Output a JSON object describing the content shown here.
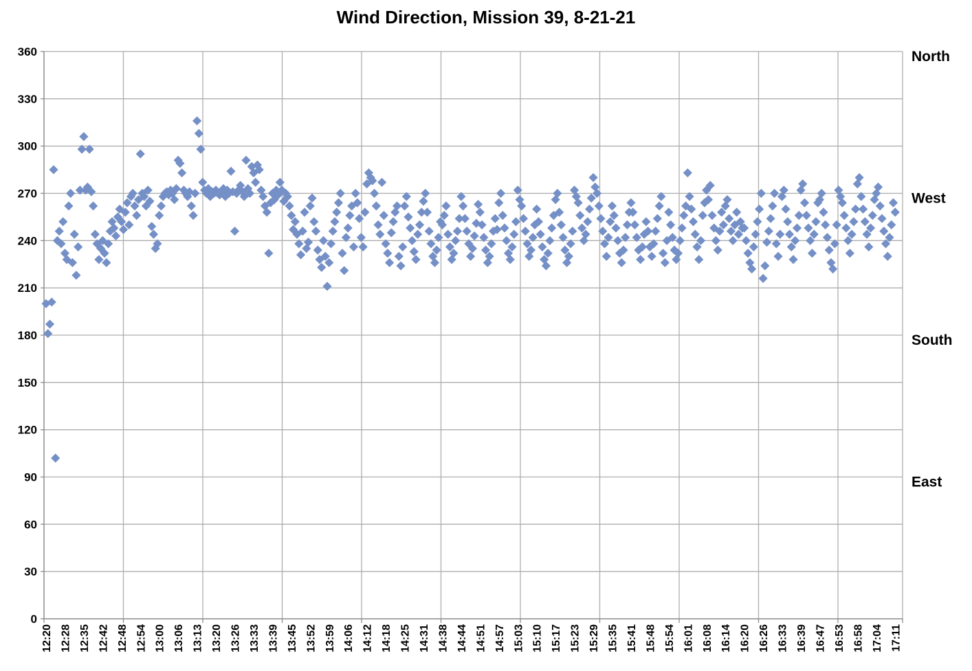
{
  "chart_data": {
    "type": "scatter",
    "title": "Wind Direction, Mission 39, 8-21-21",
    "xlabel": "",
    "ylabel": "",
    "ylim": [
      0,
      360
    ],
    "y_ticks": [
      0,
      30,
      60,
      90,
      120,
      150,
      180,
      210,
      240,
      270,
      300,
      330,
      360
    ],
    "x_tick_labels": [
      "12:20",
      "12:28",
      "12:35",
      "12:42",
      "12:48",
      "12:54",
      "13:00",
      "13:06",
      "13:13",
      "13:20",
      "13:26",
      "13:33",
      "13:39",
      "13:45",
      "13:52",
      "13:59",
      "14:06",
      "14:12",
      "14:18",
      "14:25",
      "14:31",
      "14:38",
      "14:44",
      "14:51",
      "14:57",
      "15:03",
      "15:10",
      "15:17",
      "15:23",
      "15:29",
      "15:35",
      "15:41",
      "15:48",
      "15:54",
      "16:01",
      "16:08",
      "16:14",
      "16:20",
      "16:26",
      "16:33",
      "16:39",
      "16:47",
      "16:53",
      "16:58",
      "17:04",
      "17:11"
    ],
    "direction_labels": [
      {
        "label": "North",
        "value": 360
      },
      {
        "label": "West",
        "value": 270
      },
      {
        "label": "South",
        "value": 180
      },
      {
        "label": "East",
        "value": 90
      }
    ],
    "legend": "none",
    "grid": "on",
    "marker": "diamond",
    "colors": {
      "marker_fill": "#7590C7",
      "gridline": "#ADADAD",
      "axis": "#8C8C8C",
      "text": "#000000"
    },
    "time_start": "12:20",
    "time_end": "17:11",
    "n_points": 451,
    "points": [
      200,
      181,
      187,
      201,
      285,
      102,
      240,
      246,
      238,
      252,
      232,
      228,
      262,
      270,
      226,
      244,
      218,
      236,
      272,
      298,
      306,
      272,
      274,
      298,
      271,
      262,
      244,
      238,
      228,
      235,
      240,
      232,
      226,
      238,
      246,
      252,
      248,
      243,
      255,
      260,
      252,
      247,
      258,
      264,
      250,
      268,
      270,
      262,
      256,
      266,
      295,
      270,
      268,
      262,
      272,
      265,
      249,
      244,
      235,
      238,
      256,
      262,
      268,
      270,
      271,
      269,
      272,
      270,
      266,
      273,
      291,
      289,
      283,
      272,
      270,
      268,
      271,
      262,
      256,
      270,
      316,
      308,
      298,
      277,
      272,
      270,
      273,
      268,
      271,
      270,
      272,
      270,
      269,
      271,
      273,
      268,
      272,
      270,
      284,
      271,
      246,
      270,
      272,
      275,
      271,
      268,
      291,
      273,
      270,
      287,
      283,
      277,
      288,
      285,
      272,
      268,
      262,
      258,
      232,
      264,
      270,
      266,
      272,
      269,
      277,
      272,
      265,
      270,
      268,
      262,
      256,
      247,
      252,
      244,
      238,
      231,
      246,
      258,
      235,
      239,
      262,
      267,
      252,
      246,
      234,
      228,
      223,
      240,
      230,
      211,
      226,
      238,
      246,
      252,
      258,
      264,
      270,
      232,
      221,
      242,
      248,
      256,
      262,
      236,
      270,
      264,
      254,
      242,
      236,
      258,
      276,
      283,
      280,
      278,
      270,
      262,
      250,
      244,
      277,
      256,
      238,
      232,
      226,
      245,
      252,
      258,
      262,
      230,
      224,
      236,
      262,
      268,
      255,
      248,
      240,
      233,
      228,
      244,
      250,
      258,
      265,
      270,
      258,
      246,
      238,
      230,
      226,
      234,
      242,
      252,
      250,
      256,
      262,
      244,
      236,
      228,
      232,
      240,
      246,
      254,
      268,
      262,
      254,
      246,
      238,
      230,
      235,
      243,
      251,
      263,
      258,
      250,
      242,
      234,
      226,
      230,
      238,
      246,
      254,
      247,
      264,
      270,
      256,
      248,
      240,
      232,
      228,
      236,
      244,
      252,
      272,
      266,
      262,
      254,
      246,
      238,
      230,
      234,
      242,
      250,
      260,
      252,
      244,
      236,
      228,
      224,
      232,
      240,
      248,
      256,
      266,
      270,
      258,
      250,
      242,
      234,
      226,
      230,
      238,
      246,
      272,
      268,
      264,
      256,
      248,
      240,
      244,
      252,
      260,
      267,
      280,
      274,
      270,
      262,
      254,
      246,
      238,
      230,
      242,
      252,
      262,
      256,
      248,
      240,
      232,
      226,
      234,
      242,
      250,
      258,
      264,
      258,
      250,
      242,
      234,
      228,
      236,
      244,
      252,
      246,
      236,
      230,
      238,
      246,
      254,
      262,
      268,
      232,
      226,
      240,
      258,
      250,
      242,
      234,
      228,
      232,
      240,
      248,
      256,
      262,
      283,
      268,
      260,
      252,
      244,
      236,
      228,
      240,
      256,
      264,
      272,
      266,
      275,
      256,
      248,
      240,
      234,
      246,
      258,
      250,
      262,
      266,
      254,
      246,
      240,
      250,
      258,
      244,
      252,
      248,
      248,
      240,
      232,
      226,
      222,
      236,
      244,
      252,
      260,
      270,
      216,
      224,
      239,
      246,
      254,
      262,
      270,
      238,
      230,
      244,
      268,
      272,
      260,
      252,
      244,
      236,
      228,
      240,
      248,
      256,
      272,
      276,
      264,
      256,
      248,
      240,
      232,
      244,
      252,
      264,
      266,
      270,
      258,
      250,
      242,
      234,
      226,
      222,
      238,
      250,
      272,
      268,
      264,
      256,
      248,
      240,
      232,
      244,
      252,
      260,
      276,
      280,
      268,
      260,
      252,
      244,
      236,
      248,
      256,
      266,
      270,
      274,
      262,
      254,
      246,
      238,
      230,
      242,
      250,
      264,
      258
    ]
  }
}
